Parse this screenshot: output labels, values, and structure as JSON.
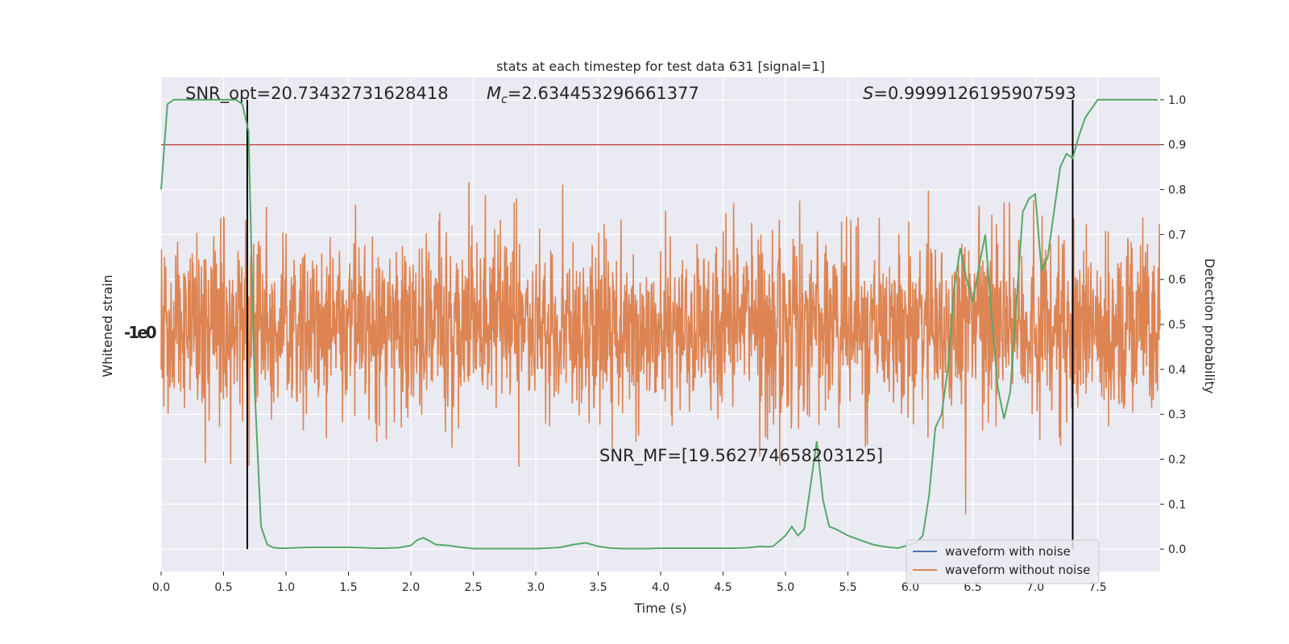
{
  "chart_data": {
    "type": "line",
    "title": "stats at each timestep for test data 631 [signal=1]",
    "xlabel": "Time (s)",
    "ylabel_left": "Whitened strain",
    "ylabel_right": "Detection probability",
    "xlim": [
      0.0,
      8.0
    ],
    "ylim_right": [
      -0.05,
      1.05
    ],
    "x_ticks": [
      "0.0",
      "0.5",
      "1.0",
      "1.5",
      "2.0",
      "2.5",
      "3.0",
      "3.5",
      "4.0",
      "4.5",
      "5.0",
      "5.5",
      "6.0",
      "6.5",
      "7.0",
      "7.5"
    ],
    "y_ticks_right": [
      "0.0",
      "0.1",
      "0.2",
      "0.3",
      "0.4",
      "0.5",
      "0.6",
      "0.7",
      "0.8",
      "0.9",
      "1.0"
    ],
    "grid": true,
    "legend_position": "bottom-right",
    "colors": {
      "background": "#eaeaf2",
      "waveform_with_noise": "#4c72b0",
      "waveform_without_noise": "#dd8452",
      "probability": "#55a868",
      "threshold": "#c44e52",
      "markers": "#000000"
    },
    "series": [
      {
        "name": "waveform with noise",
        "values": []
      },
      {
        "name": "waveform without noise",
        "values": []
      },
      {
        "x": [
          0.0,
          0.05,
          0.1,
          0.2,
          0.3,
          0.4,
          0.5,
          0.6,
          0.65,
          0.7,
          0.75,
          0.8,
          0.85,
          0.9,
          0.95,
          1.0,
          1.1,
          1.2,
          1.3,
          1.4,
          1.5,
          1.6,
          1.7,
          1.8,
          1.9,
          2.0,
          2.05,
          2.1,
          2.15,
          2.2,
          2.3,
          2.4,
          2.5,
          2.6,
          2.7,
          2.8,
          2.9,
          3.0,
          3.1,
          3.2,
          3.3,
          3.35,
          3.4,
          3.5,
          3.6,
          3.7,
          3.8,
          3.9,
          4.0,
          4.2,
          4.4,
          4.6,
          4.7,
          4.8,
          4.85,
          4.9,
          5.0,
          5.05,
          5.1,
          5.15,
          5.2,
          5.25,
          5.3,
          5.35,
          5.4,
          5.5,
          5.6,
          5.7,
          5.8,
          5.9,
          6.0,
          6.05,
          6.1,
          6.15,
          6.2,
          6.25,
          6.3,
          6.35,
          6.4,
          6.45,
          6.5,
          6.55,
          6.6,
          6.65,
          6.7,
          6.75,
          6.8,
          6.85,
          6.9,
          6.95,
          7.0,
          7.05,
          7.1,
          7.15,
          7.2,
          7.25,
          7.3,
          7.35,
          7.4,
          7.45,
          7.5,
          7.55,
          7.6,
          7.7,
          7.8,
          7.9,
          7.98
        ],
        "values": [
          0.8,
          0.99,
          1.0,
          1.0,
          1.0,
          1.0,
          1.0,
          1.0,
          0.99,
          0.93,
          0.35,
          0.05,
          0.01,
          0.003,
          0.002,
          0.002,
          0.003,
          0.004,
          0.004,
          0.004,
          0.004,
          0.003,
          0.002,
          0.002,
          0.003,
          0.008,
          0.02,
          0.025,
          0.018,
          0.01,
          0.008,
          0.004,
          0.001,
          0.001,
          0.001,
          0.001,
          0.001,
          0.001,
          0.002,
          0.004,
          0.01,
          0.012,
          0.014,
          0.006,
          0.002,
          0.001,
          0.001,
          0.001,
          0.002,
          0.002,
          0.002,
          0.002,
          0.003,
          0.006,
          0.005,
          0.006,
          0.03,
          0.05,
          0.03,
          0.045,
          0.14,
          0.24,
          0.11,
          0.05,
          0.045,
          0.03,
          0.02,
          0.01,
          0.005,
          0.002,
          0.01,
          0.015,
          0.03,
          0.12,
          0.27,
          0.3,
          0.4,
          0.58,
          0.67,
          0.6,
          0.55,
          0.63,
          0.7,
          0.52,
          0.36,
          0.29,
          0.35,
          0.55,
          0.75,
          0.78,
          0.79,
          0.62,
          0.65,
          0.75,
          0.85,
          0.88,
          0.87,
          0.92,
          0.96,
          0.98,
          1.0,
          1.0,
          1.0,
          1.0,
          1.0,
          1.0,
          1.0
        ]
      }
    ],
    "hlines": [
      0.9
    ],
    "vlines": [
      0.69,
      7.3
    ],
    "annotations": {
      "snr_opt": "SNR_opt=20.73432731628418",
      "mc_symbol": "M",
      "mc_sub": "c",
      "mc_value": "=2.634453296661377",
      "s_symbol": "S",
      "s_value": "=0.9999126195907593",
      "snr_mf": "SNR_MF=[19.562774658203125]"
    },
    "left_axis_glyph": "-1e0"
  }
}
